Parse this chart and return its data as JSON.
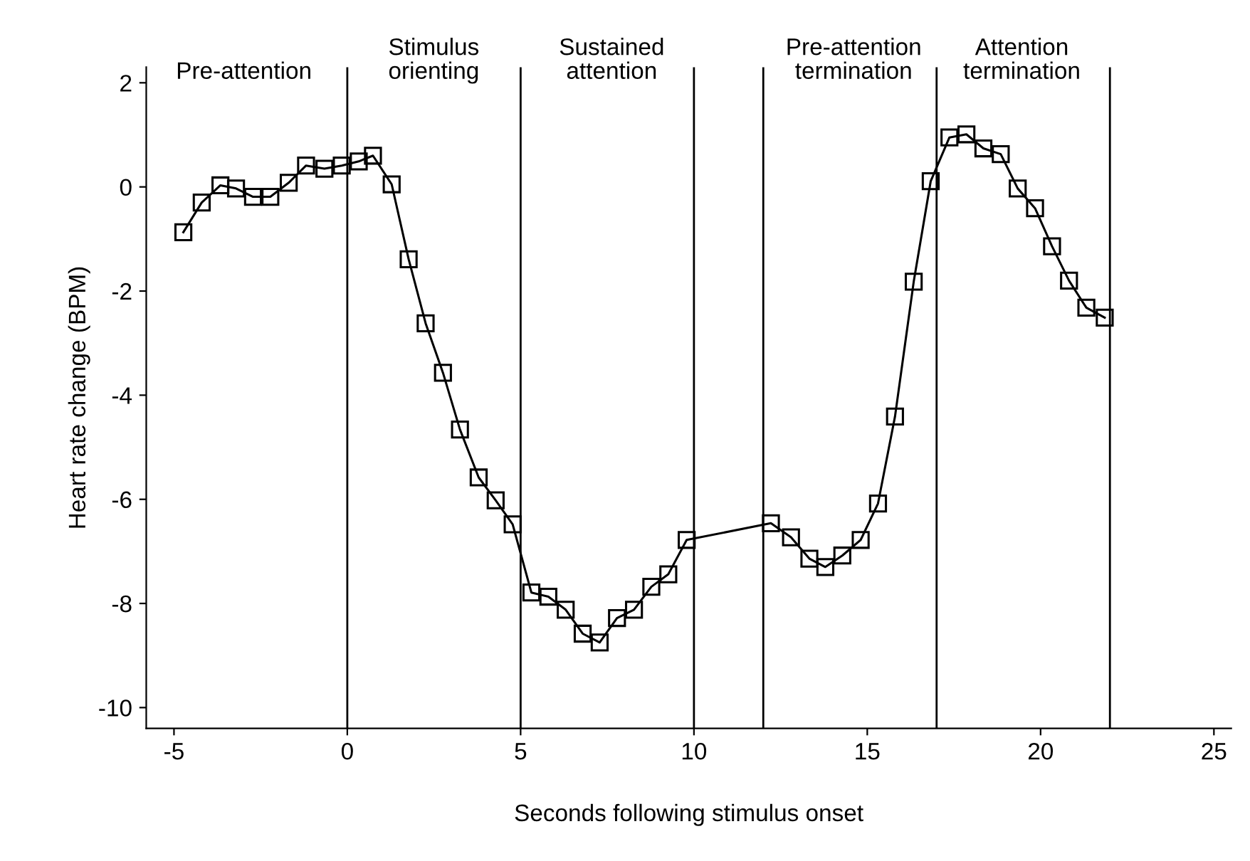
{
  "chart_data": {
    "type": "line",
    "xlabel": "Seconds following stimulus onset",
    "ylabel": "Heart rate change (BPM)",
    "xlim": [
      -5.8,
      25.5
    ],
    "xticks": [
      -5,
      0,
      5,
      10,
      15,
      20,
      25
    ],
    "ylim": [
      -10.4,
      2.3
    ],
    "yticks": [
      -10,
      -8,
      -6,
      -4,
      -2,
      0,
      2
    ],
    "grid": false,
    "marker": "square",
    "line_style": "solid",
    "series": [
      {
        "color": "#000000",
        "x": [
          -4.73,
          -4.2,
          -3.66,
          -3.21,
          -2.72,
          -2.22,
          -1.69,
          -1.19,
          -0.66,
          -0.16,
          0.33,
          0.74,
          1.28,
          1.77,
          2.26,
          2.76,
          3.25,
          3.79,
          4.28,
          4.77,
          5.31,
          5.8,
          6.3,
          6.79,
          7.28,
          7.78,
          8.27,
          8.77,
          9.26,
          9.79,
          12.22,
          12.8,
          13.33,
          13.79,
          14.28,
          14.81,
          15.31,
          15.8,
          16.34,
          16.83,
          17.37,
          17.86,
          18.35,
          18.85,
          19.34,
          19.84,
          20.33,
          20.82,
          21.32,
          21.85
        ],
        "values": [
          -0.87,
          -0.3,
          0.03,
          -0.03,
          -0.19,
          -0.19,
          0.08,
          0.41,
          0.35,
          0.41,
          0.49,
          0.6,
          0.05,
          -1.39,
          -2.62,
          -3.57,
          -4.66,
          -5.58,
          -6.02,
          -6.48,
          -7.79,
          -7.87,
          -8.12,
          -8.58,
          -8.75,
          -8.28,
          -8.12,
          -7.68,
          -7.44,
          -6.78,
          -6.46,
          -6.73,
          -7.14,
          -7.3,
          -7.08,
          -6.78,
          -6.08,
          -4.41,
          -1.82,
          0.11,
          0.95,
          1.01,
          0.74,
          0.63,
          -0.03,
          -0.41,
          -1.14,
          -1.8,
          -2.32,
          -2.51
        ]
      }
    ],
    "ref_lines": [
      {
        "axis": "x",
        "value": 0,
        "color": "#000000"
      },
      {
        "axis": "x",
        "value": 5,
        "color": "#000000"
      },
      {
        "axis": "x",
        "value": 10,
        "color": "#000000"
      },
      {
        "axis": "x",
        "value": 12,
        "color": "#000000"
      },
      {
        "axis": "x",
        "value": 17,
        "color": "#000000"
      },
      {
        "axis": "x",
        "value": 22,
        "color": "#000000"
      }
    ],
    "annotations": [
      "Pre-attention",
      "Stimulus\norienting",
      "Sustained\nattention",
      "Pre-attention\ntermination",
      "Attention\ntermination"
    ]
  }
}
